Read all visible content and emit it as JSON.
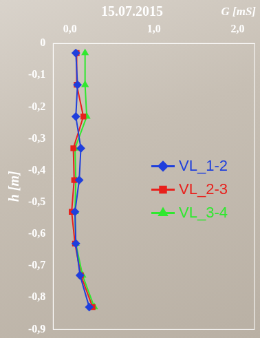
{
  "chart_data": {
    "type": "line",
    "title": "15.07.2015",
    "x_label": "G [mS]",
    "y_label": "h [m]",
    "xlim": [
      -0.2,
      2.2
    ],
    "xticks": [
      {
        "value": 0,
        "label": "0,0"
      },
      {
        "value": 1,
        "label": "1,0"
      },
      {
        "value": 2,
        "label": "2,0"
      }
    ],
    "ylim": [
      -0.9,
      0
    ],
    "yticks": [
      0,
      {
        "value": -0.1,
        "label": "-0,1"
      },
      {
        "value": -0.2,
        "label": "-0,2"
      },
      {
        "value": -0.3,
        "label": "-0,3"
      },
      {
        "value": -0.4,
        "label": "-0,4"
      },
      {
        "value": -0.5,
        "label": "-0,5"
      },
      {
        "value": -0.6,
        "label": "-0,6"
      },
      {
        "value": -0.7,
        "label": "-0,7"
      },
      {
        "value": -0.8,
        "label": "-0,8"
      },
      {
        "value": -0.9,
        "label": "-0,9"
      }
    ],
    "grid": false,
    "legend": "right",
    "series": [
      {
        "name": "VL_1-2",
        "color": "#1f3fdc",
        "marker": "diamond",
        "x": [
          0.07,
          0.09,
          0.07,
          0.13,
          0.11,
          0.06,
          0.07,
          0.12,
          0.23
        ],
        "values": [
          -0.03,
          -0.13,
          -0.23,
          -0.33,
          -0.43,
          -0.53,
          -0.63,
          -0.73,
          -0.83
        ]
      },
      {
        "name": "VL_2-3",
        "color": "#e8201c",
        "marker": "square",
        "x": [
          0.08,
          0.08,
          0.16,
          0.04,
          0.05,
          0.02,
          0.06,
          0.13,
          0.27
        ],
        "values": [
          -0.03,
          -0.13,
          -0.23,
          -0.33,
          -0.43,
          -0.53,
          -0.63,
          -0.73,
          -0.83
        ]
      },
      {
        "name": "VL_3-4",
        "color": "#2fe82f",
        "marker": "triangle",
        "x": [
          0.18,
          0.18,
          0.2,
          0.06,
          0.07,
          0.06,
          0.07,
          0.15,
          0.29
        ],
        "values": [
          -0.03,
          -0.13,
          -0.23,
          -0.33,
          -0.43,
          -0.53,
          -0.63,
          -0.73,
          -0.83
        ]
      }
    ]
  }
}
